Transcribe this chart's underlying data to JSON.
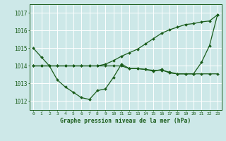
{
  "background_color": "#cde8e8",
  "grid_color": "#ffffff",
  "line_color": "#1a5c1a",
  "marker_color": "#1a5c1a",
  "title": "Graphe pression niveau de la mer (hPa)",
  "xlabel_ticks": [
    0,
    1,
    2,
    3,
    4,
    5,
    6,
    7,
    8,
    9,
    10,
    11,
    12,
    13,
    14,
    15,
    16,
    17,
    18,
    19,
    20,
    21,
    22,
    23
  ],
  "ylim": [
    1011.5,
    1017.5
  ],
  "yticks": [
    1012,
    1013,
    1014,
    1015,
    1016,
    1017
  ],
  "series": [
    {
      "y": [
        1015.0,
        1014.5,
        1014.0,
        1013.2,
        1012.8,
        1012.5,
        1012.2,
        1012.1,
        1012.6,
        1012.7,
        1013.35,
        1014.1,
        1013.85,
        1013.85,
        1013.8,
        1013.7,
        1013.8,
        1013.6,
        1013.55,
        1013.55,
        1013.55,
        1014.2,
        1015.15,
        1016.9
      ],
      "linestyle": "-",
      "linewidth": 0.9,
      "markersize": 2.0
    },
    {
      "y": [
        1014.0,
        1014.0,
        1014.0,
        1014.0,
        1014.0,
        1014.0,
        1014.0,
        1014.0,
        1014.0,
        1014.0,
        1014.0,
        1014.0,
        1013.85,
        1013.85,
        1013.8,
        1013.75,
        1013.75,
        1013.65,
        1013.55,
        1013.55,
        1013.55,
        1013.55,
        1013.55,
        1013.55
      ],
      "linestyle": "-",
      "linewidth": 0.9,
      "markersize": 2.0
    },
    {
      "y": [
        1014.0,
        1014.0,
        1014.0,
        1014.0,
        1014.0,
        1014.0,
        1014.0,
        1014.0,
        1014.0,
        1014.1,
        1014.3,
        1014.55,
        1014.75,
        1014.95,
        1015.25,
        1015.55,
        1015.85,
        1016.05,
        1016.2,
        1016.35,
        1016.4,
        1016.5,
        1016.55,
        1016.9
      ],
      "linestyle": "-",
      "linewidth": 0.9,
      "markersize": 2.0
    }
  ]
}
